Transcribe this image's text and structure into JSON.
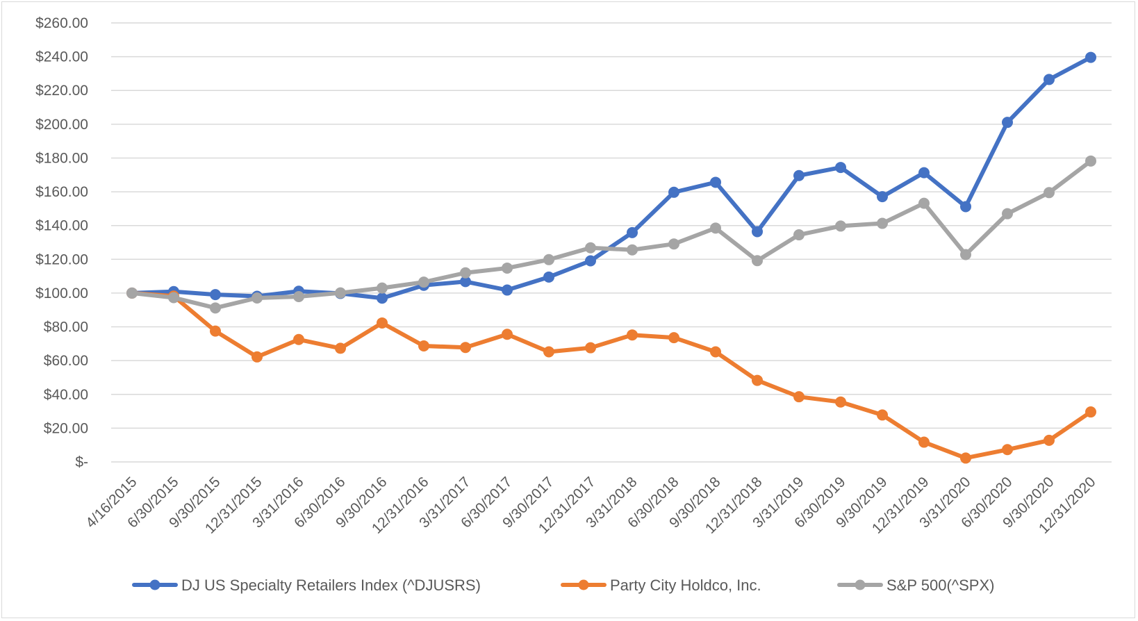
{
  "chart_data": {
    "type": "line",
    "title": "",
    "xlabel": "",
    "ylabel": "",
    "ylim": [
      0,
      260
    ],
    "y_ticks": [
      0,
      20,
      40,
      60,
      80,
      100,
      120,
      140,
      160,
      180,
      200,
      220,
      240,
      260
    ],
    "y_tick_labels": [
      "$-",
      "$20.00",
      "$40.00",
      "$60.00",
      "$80.00",
      "$100.00",
      "$120.00",
      "$140.00",
      "$160.00",
      "$180.00",
      "$200.00",
      "$220.00",
      "$240.00",
      "$260.00"
    ],
    "grid": true,
    "legend_position": "bottom",
    "categories": [
      "4/16/2015",
      "6/30/2015",
      "9/30/2015",
      "12/31/2015",
      "3/31/2016",
      "6/30/2016",
      "9/30/2016",
      "12/31/2016",
      "3/31/2017",
      "6/30/2017",
      "9/30/2017",
      "12/31/2017",
      "3/31/2018",
      "6/30/2018",
      "9/30/2018",
      "12/31/2018",
      "3/31/2019",
      "6/30/2019",
      "9/30/2019",
      "12/31/2019",
      "3/31/2020",
      "6/30/2020",
      "9/30/2020",
      "12/31/2020"
    ],
    "series": [
      {
        "name": "DJ US Specialty Retailers Index (^DJUSRS)",
        "color": "#4472c4",
        "values": [
          100,
          100.9,
          99.1,
          98.1,
          101.1,
          99.8,
          97.0,
          104.6,
          106.8,
          101.8,
          109.5,
          119.1,
          135.8,
          159.7,
          165.6,
          136.4,
          169.6,
          174.4,
          157.1,
          171.3,
          151.2,
          201.1,
          226.5,
          239.6
        ]
      },
      {
        "name": "Party City Holdco, Inc.",
        "color": "#ed7d31",
        "values": [
          100,
          98.2,
          77.5,
          62.2,
          72.5,
          67.3,
          82.3,
          68.7,
          67.8,
          75.6,
          65.2,
          67.6,
          75.2,
          73.6,
          65.2,
          48.3,
          38.6,
          35.5,
          27.8,
          11.7,
          2.3,
          7.3,
          12.8,
          29.6
        ]
      },
      {
        "name": "S&P 500(^SPX)",
        "color": "#a5a5a5",
        "values": [
          100,
          97.3,
          91.2,
          97.1,
          97.9,
          100.1,
          103.0,
          106.5,
          112.0,
          114.8,
          119.8,
          126.8,
          125.6,
          129.1,
          138.5,
          119.2,
          134.5,
          139.7,
          141.3,
          153.2,
          122.8,
          147.0,
          159.5,
          178.2
        ]
      }
    ]
  }
}
